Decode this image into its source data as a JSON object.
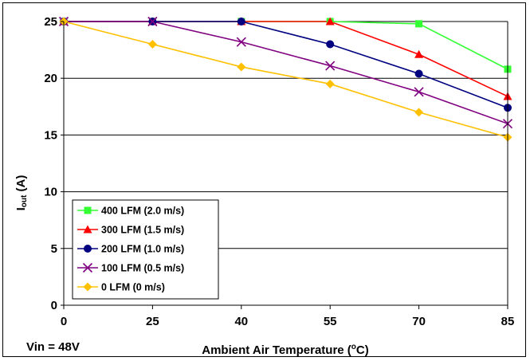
{
  "chart_data": {
    "type": "line",
    "x": [
      0,
      25,
      40,
      55,
      70,
      85
    ],
    "x_tick_labels": [
      "0",
      "25",
      "40",
      "55",
      "70",
      "85"
    ],
    "y_tick_labels": [
      "0",
      "5",
      "10",
      "15",
      "20",
      "25"
    ],
    "ylim": [
      0,
      25
    ],
    "xlabel_main": "Ambient Air Temperature (",
    "xlabel_sup": "o",
    "xlabel_end": "C)",
    "ylabel_main": "I",
    "ylabel_sub": "out",
    "ylabel_end": " (A)",
    "note": "Vin = 48V",
    "grid": "horizontal",
    "legend_position": "bottom-left",
    "series": [
      {
        "name": "400 LFM (2.0 m/s)",
        "color": "#33ff33",
        "marker": "square",
        "values": [
          25,
          25,
          25,
          25,
          24.8,
          20.8
        ]
      },
      {
        "name": "300 LFM (1.5 m/s)",
        "color": "#ff0000",
        "marker": "triangle",
        "values": [
          25,
          25,
          25,
          25,
          22.1,
          18.4
        ]
      },
      {
        "name": "200 LFM (1.0 m/s)",
        "color": "#000080",
        "marker": "circle",
        "values": [
          25,
          25,
          25,
          23.0,
          20.4,
          17.4
        ]
      },
      {
        "name": "100 LFM (0.5 m/s)",
        "color": "#800080",
        "marker": "x",
        "values": [
          25,
          25,
          23.2,
          21.1,
          18.8,
          16.0
        ]
      },
      {
        "name": "0 LFM (0 m/s)",
        "color": "#ffc000",
        "marker": "diamond",
        "values": [
          25,
          23.0,
          21.0,
          19.5,
          17.0,
          14.8
        ]
      }
    ]
  }
}
